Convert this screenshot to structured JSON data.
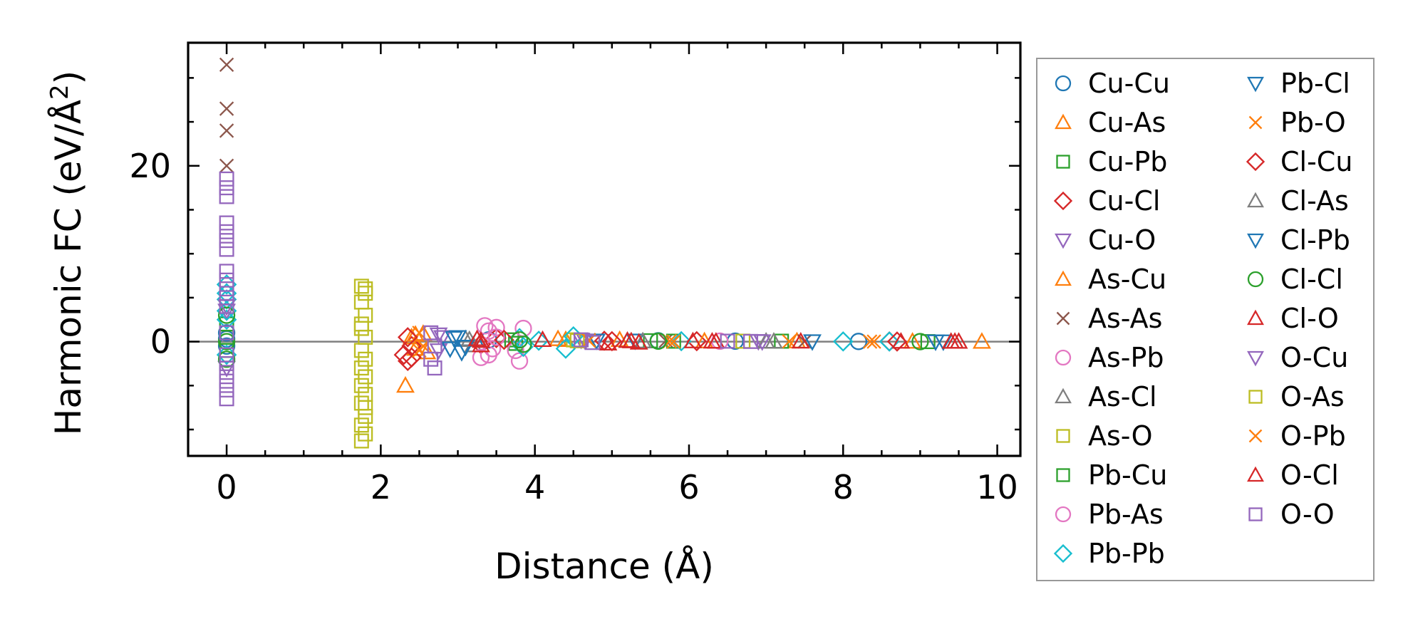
{
  "chart_data": {
    "type": "scatter",
    "title": "",
    "xlabel": "Distance (Å)",
    "ylabel_main": "Harmonic FC (eV/Å",
    "ylabel_sup": "2",
    "ylabel_close": ")",
    "xlim": [
      -0.5,
      10.3
    ],
    "ylim": [
      -13,
      34
    ],
    "xticks": [
      0,
      2,
      4,
      6,
      8,
      10
    ],
    "yticks": [
      0,
      20
    ],
    "xtick_labels": [
      "0",
      "2",
      "4",
      "6",
      "8",
      "10"
    ],
    "ytick_labels": [
      "0",
      "20"
    ],
    "legend_position": "outside-right",
    "legend_columns": 2,
    "series": [
      {
        "name": "Cu-Cu",
        "marker": "circle",
        "color": "#1f77b4",
        "points": [
          [
            0,
            0.3
          ],
          [
            0,
            -0.5
          ],
          [
            0,
            1.0
          ],
          [
            3.4,
            0.2
          ],
          [
            5.6,
            0.1
          ],
          [
            6.6,
            0.05
          ],
          [
            8.2,
            0.02
          ]
        ]
      },
      {
        "name": "Cu-As",
        "marker": "triangle-up",
        "color": "#ff7f0e",
        "points": [
          [
            2.32,
            -5.0
          ],
          [
            2.4,
            0.5
          ],
          [
            2.45,
            -0.8
          ],
          [
            2.55,
            0.9
          ],
          [
            4.3,
            0.3
          ],
          [
            5.1,
            0.2
          ],
          [
            7.4,
            0.05
          ],
          [
            9.8,
            0.0
          ]
        ]
      },
      {
        "name": "Cu-Pb",
        "marker": "square",
        "color": "#2ca02c",
        "points": [
          [
            0,
            2.0
          ],
          [
            0,
            -1.0
          ],
          [
            3.7,
            0.2
          ],
          [
            5.5,
            0.1
          ],
          [
            7.2,
            0.05
          ]
        ]
      },
      {
        "name": "Cu-Cl",
        "marker": "diamond",
        "color": "#d62728",
        "points": [
          [
            2.3,
            -1.5
          ],
          [
            2.35,
            -2.2
          ],
          [
            2.4,
            -0.5
          ],
          [
            3.3,
            -0.3
          ],
          [
            3.5,
            0.4
          ],
          [
            4.9,
            0.1
          ],
          [
            6.1,
            0.05
          ],
          [
            8.6,
            0.02
          ]
        ]
      },
      {
        "name": "Cu-O",
        "marker": "triangle-down",
        "color": "#9467bd",
        "points": [
          [
            0,
            3.5
          ],
          [
            0,
            -3.0
          ],
          [
            2.75,
            -1.0
          ],
          [
            2.8,
            0.5
          ],
          [
            4.6,
            0.2
          ],
          [
            6.9,
            0.05
          ]
        ]
      },
      {
        "name": "As-Cu",
        "marker": "triangle-up",
        "color": "#ff7f0e",
        "points": [
          [
            2.45,
            0.8
          ],
          [
            2.6,
            -1.2
          ],
          [
            4.4,
            0.2
          ],
          [
            6.2,
            0.05
          ],
          [
            8.9,
            0.01
          ]
        ]
      },
      {
        "name": "As-As",
        "marker": "x",
        "color": "#8c564b",
        "points": [
          [
            0,
            31.5
          ],
          [
            0,
            26.5
          ],
          [
            0,
            24.0
          ],
          [
            0,
            20.0
          ],
          [
            5.7,
            0.1
          ],
          [
            7.5,
            0.02
          ]
        ]
      },
      {
        "name": "As-Pb",
        "marker": "circle",
        "color": "#e377c2",
        "points": [
          [
            3.35,
            1.8
          ],
          [
            3.4,
            1.2
          ],
          [
            3.4,
            -1.5
          ],
          [
            3.45,
            -0.8
          ],
          [
            3.5,
            0.5
          ],
          [
            3.8,
            -2.2
          ],
          [
            3.85,
            1.5
          ],
          [
            6.4,
            0.05
          ]
        ]
      },
      {
        "name": "As-Cl",
        "marker": "triangle-up",
        "color": "#7f7f7f",
        "points": [
          [
            3.1,
            0.3
          ],
          [
            3.2,
            -0.4
          ],
          [
            5.2,
            0.1
          ],
          [
            7.0,
            0.02
          ]
        ]
      },
      {
        "name": "As-O",
        "marker": "square",
        "color": "#bcbd22",
        "points": [
          [
            1.75,
            6.3
          ],
          [
            1.8,
            5.5
          ],
          [
            1.75,
            4.5
          ],
          [
            1.8,
            3.0
          ],
          [
            1.75,
            1.5
          ],
          [
            1.8,
            0.5
          ],
          [
            1.75,
            -1.0
          ],
          [
            1.8,
            -2.0
          ],
          [
            1.75,
            -3.0
          ],
          [
            1.8,
            -4.0
          ],
          [
            1.75,
            -5.0
          ],
          [
            1.8,
            -6.0
          ],
          [
            1.75,
            -7.0
          ],
          [
            1.8,
            -8.5
          ],
          [
            1.75,
            -9.5
          ],
          [
            1.8,
            -10.5
          ],
          [
            1.75,
            -11.3
          ],
          [
            4.5,
            0.2
          ],
          [
            6.7,
            0.05
          ]
        ]
      },
      {
        "name": "Pb-Cu",
        "marker": "square",
        "color": "#2ca02c",
        "points": [
          [
            0,
            0.5
          ],
          [
            3.75,
            -0.2
          ],
          [
            5.8,
            0.05
          ],
          [
            9.1,
            0.0
          ]
        ]
      },
      {
        "name": "Pb-As",
        "marker": "circle",
        "color": "#e377c2",
        "points": [
          [
            3.3,
            -1.8
          ],
          [
            3.5,
            1.6
          ],
          [
            3.75,
            -1.0
          ]
        ]
      },
      {
        "name": "Pb-Pb",
        "marker": "diamond",
        "color": "#17becf",
        "points": [
          [
            0,
            6.5
          ],
          [
            0,
            5.5
          ],
          [
            0,
            4.8
          ],
          [
            0,
            3.5
          ],
          [
            0,
            2.5
          ],
          [
            0,
            -1.5
          ],
          [
            3.8,
            0.4
          ],
          [
            3.85,
            -0.6
          ],
          [
            4.05,
            0.1
          ],
          [
            4.4,
            -0.8
          ],
          [
            4.5,
            0.6
          ],
          [
            5.9,
            0.05
          ],
          [
            8.0,
            0.02
          ],
          [
            8.6,
            0.01
          ]
        ]
      },
      {
        "name": "Pb-Cl",
        "marker": "triangle-down",
        "color": "#1f77b4",
        "points": [
          [
            2.9,
            -0.8
          ],
          [
            3.0,
            0.5
          ],
          [
            3.05,
            -1.2
          ],
          [
            5.3,
            0.1
          ],
          [
            7.6,
            0.02
          ],
          [
            9.2,
            0.0
          ]
        ]
      },
      {
        "name": "Pb-O",
        "marker": "x",
        "color": "#ff7f0e",
        "points": [
          [
            2.5,
            1.0
          ],
          [
            2.55,
            -0.5
          ],
          [
            4.7,
            0.2
          ],
          [
            5.75,
            0.05
          ],
          [
            7.3,
            0.02
          ],
          [
            8.4,
            0.0
          ]
        ]
      },
      {
        "name": "Cl-Cu",
        "marker": "diamond",
        "color": "#d62728",
        "points": [
          [
            2.35,
            0.5
          ],
          [
            2.4,
            -1.8
          ],
          [
            3.6,
            0.2
          ],
          [
            5.0,
            0.05
          ],
          [
            8.7,
            0.01
          ]
        ]
      },
      {
        "name": "Cl-As",
        "marker": "triangle-up",
        "color": "#7f7f7f",
        "points": [
          [
            3.15,
            0.2
          ],
          [
            5.4,
            0.05
          ],
          [
            7.1,
            0.01
          ]
        ]
      },
      {
        "name": "Cl-Pb",
        "marker": "triangle-down",
        "color": "#1f77b4",
        "points": [
          [
            2.95,
            0.4
          ],
          [
            3.1,
            -0.6
          ],
          [
            4.8,
            0.1
          ],
          [
            9.3,
            0.0
          ]
        ]
      },
      {
        "name": "Cl-Cl",
        "marker": "circle",
        "color": "#2ca02c",
        "points": [
          [
            0,
            3.0
          ],
          [
            0,
            0.0
          ],
          [
            0,
            -2.0
          ],
          [
            3.8,
            0.2
          ],
          [
            3.85,
            -0.3
          ],
          [
            5.6,
            0.05
          ],
          [
            9.0,
            0.0
          ]
        ]
      },
      {
        "name": "Cl-O",
        "marker": "triangle-up",
        "color": "#d62728",
        "points": [
          [
            3.25,
            0.3
          ],
          [
            3.3,
            -0.4
          ],
          [
            4.1,
            0.2
          ],
          [
            4.95,
            -0.2
          ],
          [
            5.2,
            0.1
          ],
          [
            5.35,
            -0.1
          ],
          [
            6.05,
            0.05
          ],
          [
            6.3,
            0.02
          ],
          [
            7.45,
            0.02
          ],
          [
            8.75,
            0.01
          ],
          [
            9.4,
            0.0
          ],
          [
            9.5,
            0.0
          ]
        ]
      },
      {
        "name": "O-Cu",
        "marker": "triangle-down",
        "color": "#9467bd",
        "points": [
          [
            0,
            4.0
          ],
          [
            2.75,
            0.8
          ],
          [
            4.65,
            0.1
          ],
          [
            6.95,
            0.02
          ]
        ]
      },
      {
        "name": "O-As",
        "marker": "square",
        "color": "#bcbd22",
        "points": [
          [
            1.8,
            6.0
          ],
          [
            1.75,
            2.0
          ],
          [
            1.8,
            -7.5
          ],
          [
            4.55,
            0.1
          ]
        ]
      },
      {
        "name": "O-Pb",
        "marker": "x",
        "color": "#ff7f0e",
        "points": [
          [
            2.5,
            -1.0
          ],
          [
            4.7,
            0.1
          ],
          [
            5.8,
            0.0
          ],
          [
            8.35,
            0.0
          ]
        ]
      },
      {
        "name": "O-Cl",
        "marker": "triangle-up",
        "color": "#d62728",
        "points": [
          [
            3.3,
            0.1
          ],
          [
            5.25,
            0.05
          ],
          [
            6.35,
            0.01
          ],
          [
            9.45,
            0.0
          ]
        ]
      },
      {
        "name": "O-O",
        "marker": "square",
        "color": "#9467bd",
        "points": [
          [
            0,
            18.5
          ],
          [
            0,
            17.5
          ],
          [
            0,
            16.5
          ],
          [
            0,
            13.5
          ],
          [
            0,
            12.5
          ],
          [
            0,
            11.5
          ],
          [
            0,
            10.5
          ],
          [
            0,
            8.0
          ],
          [
            0,
            7.0
          ],
          [
            0,
            6.0
          ],
          [
            0,
            5.0
          ],
          [
            0,
            4.0
          ],
          [
            0,
            1.0
          ],
          [
            0,
            -1.5
          ],
          [
            0,
            -2.5
          ],
          [
            0,
            -3.5
          ],
          [
            0,
            -4.5
          ],
          [
            0,
            -5.5
          ],
          [
            0,
            -6.5
          ],
          [
            2.65,
            1.0
          ],
          [
            2.7,
            -0.5
          ],
          [
            2.65,
            -2.0
          ],
          [
            2.7,
            -3.0
          ],
          [
            4.6,
            0.2
          ],
          [
            4.75,
            -0.1
          ],
          [
            6.5,
            0.05
          ],
          [
            6.8,
            0.02
          ]
        ]
      }
    ]
  }
}
